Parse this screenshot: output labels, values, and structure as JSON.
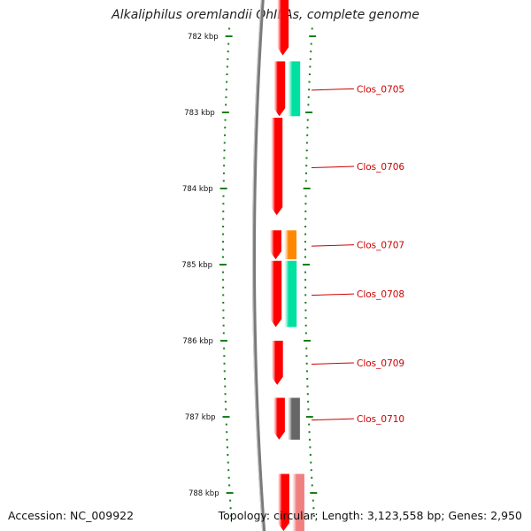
{
  "title": "Alkaliphilus oremlandii OhILAs, complete genome",
  "footer": {
    "accession": "Accession: NC_009922",
    "topology": "Topology: circular; Length: 3,123,558 bp; Genes: 2,950"
  },
  "ruler": {
    "unit": "kbp",
    "ticks": [
      {
        "kbp": 782,
        "label": "782 kbp"
      },
      {
        "kbp": 783,
        "label": "783 kbp"
      },
      {
        "kbp": 784,
        "label": "784 kbp"
      },
      {
        "kbp": 785,
        "label": "785 kbp"
      },
      {
        "kbp": 786,
        "label": "786 kbp"
      },
      {
        "kbp": 787,
        "label": "787 kbp"
      },
      {
        "kbp": 788,
        "label": "788 kbp"
      }
    ]
  },
  "colors": {
    "cds": "#ff0000",
    "cds_light": "#f08080",
    "label": "#cc0000",
    "tick": "#1a7f1a",
    "teal": "#00e0a0",
    "orange": "#ff8800",
    "gray": "#666666",
    "backbone": "#7a7a7a"
  },
  "features": [
    {
      "name": "",
      "start_kbp": 781.35,
      "end_kbp": 782.25,
      "strand": "-",
      "color": "#ff0000"
    },
    {
      "name": "Clos_0705",
      "start_kbp": 782.33,
      "end_kbp": 783.05,
      "strand": "-",
      "color": "#ff0000",
      "cog_color": "#00e0a0"
    },
    {
      "name": "Clos_0706",
      "start_kbp": 783.07,
      "end_kbp": 784.35,
      "strand": "-",
      "color": "#ff0000"
    },
    {
      "name": "Clos_0707",
      "start_kbp": 784.55,
      "end_kbp": 784.93,
      "strand": "-",
      "color": "#ff0000",
      "cog_color": "#ff8800"
    },
    {
      "name": "Clos_0708",
      "start_kbp": 784.95,
      "end_kbp": 785.82,
      "strand": "-",
      "color": "#ff0000",
      "cog_color": "#00e0a0"
    },
    {
      "name": "Clos_0709",
      "start_kbp": 786.0,
      "end_kbp": 786.58,
      "strand": "-",
      "color": "#ff0000"
    },
    {
      "name": "Clos_0710",
      "start_kbp": 786.75,
      "end_kbp": 787.3,
      "strand": "-",
      "color": "#ff0000",
      "cog_color": "#666666"
    },
    {
      "name": "",
      "start_kbp": 787.75,
      "end_kbp": 788.5,
      "strand": "-",
      "color": "#ff0000",
      "cog_color": "#f08080"
    }
  ]
}
